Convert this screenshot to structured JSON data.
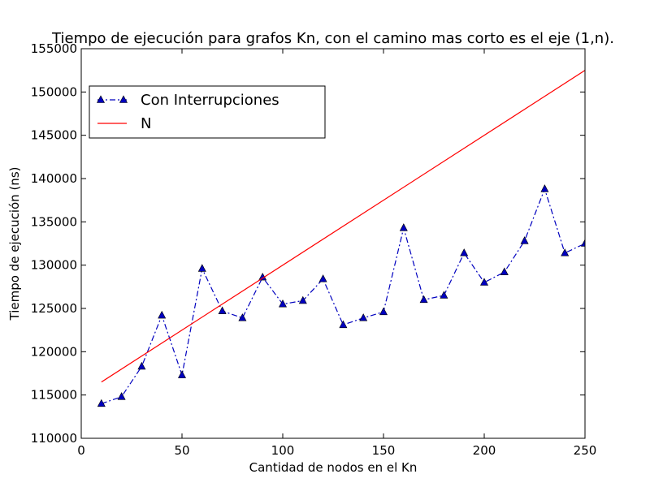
{
  "chart_data": {
    "type": "line",
    "title": "Tiempo de ejecución para grafos Kn, con el camino mas corto es el eje (1,n).",
    "xlabel": "Cantidad de nodos en el Kn",
    "ylabel": "Tiempo de ejecución (ns)",
    "xlim": [
      0,
      250
    ],
    "ylim": [
      110000,
      155000
    ],
    "xticks": [
      0,
      50,
      100,
      150,
      200,
      250
    ],
    "yticks": [
      110000,
      115000,
      120000,
      125000,
      130000,
      135000,
      140000,
      145000,
      150000,
      155000
    ],
    "grid": false,
    "legend_position": "top-left",
    "series": [
      {
        "name": "Con Interrupciones",
        "color": "#0000bf",
        "style": "dash-dot",
        "marker": "triangle",
        "x": [
          10,
          20,
          30,
          40,
          50,
          60,
          70,
          80,
          90,
          100,
          110,
          120,
          130,
          140,
          150,
          160,
          170,
          180,
          190,
          200,
          210,
          220,
          230,
          240,
          250
        ],
        "y": [
          114000,
          114800,
          118300,
          124200,
          117300,
          129600,
          124700,
          123900,
          128600,
          125500,
          125900,
          128400,
          123100,
          123900,
          124600,
          134300,
          126000,
          126500,
          131400,
          128000,
          129200,
          132800,
          138800,
          131400,
          132500
        ]
      },
      {
        "name": "N",
        "color": "#ff0000",
        "style": "solid",
        "marker": "none",
        "x": [
          10,
          250
        ],
        "y": [
          116500,
          152500
        ]
      }
    ]
  }
}
